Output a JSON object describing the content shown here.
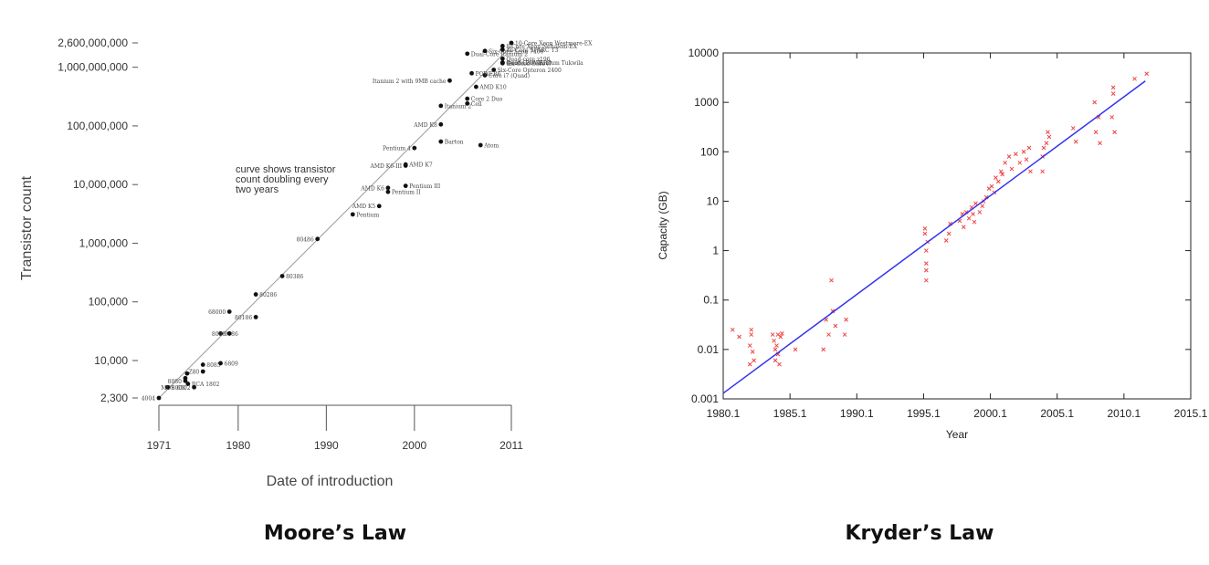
{
  "captions": {
    "left": "Moore’s Law",
    "right": "Kryder’s Law"
  },
  "chart_data": [
    {
      "type": "scatter",
      "title": "",
      "xlabel": "Date of introduction",
      "ylabel": "Transistor count",
      "yscale": "log",
      "xlim": [
        1971,
        2011
      ],
      "ylim": [
        2300,
        2600000000
      ],
      "x_ticks": [
        1971,
        1980,
        1990,
        2000,
        2011
      ],
      "y_ticks": [
        {
          "value": 2300,
          "label": "2,300"
        },
        {
          "value": 10000,
          "label": "10,000"
        },
        {
          "value": 100000,
          "label": "100,000"
        },
        {
          "value": 1000000,
          "label": "1,000,000"
        },
        {
          "value": 10000000,
          "label": "10,000,000"
        },
        {
          "value": 100000000,
          "label": "100,000,000"
        },
        {
          "value": 1000000000,
          "label": "1,000,000,000"
        },
        {
          "value": 2600000000,
          "label": "2,600,000,000"
        }
      ],
      "grid": false,
      "annotation": [
        "curve shows transistor",
        "count doubling every",
        "two years"
      ],
      "trend_line": {
        "x": [
          1971,
          2011
        ],
        "y": [
          2300,
          2300000000
        ]
      },
      "points": [
        {
          "x": 1971,
          "y": 2300,
          "label": "4004"
        },
        {
          "x": 1972,
          "y": 3500,
          "label": "8008"
        },
        {
          "x": 1974,
          "y": 4500,
          "label": "8080"
        },
        {
          "x": 1974,
          "y": 5000,
          "label": ""
        },
        {
          "x": 1974.2,
          "y": 6000,
          "label": ""
        },
        {
          "x": 1974.3,
          "y": 4000,
          "label": "RCA 1802"
        },
        {
          "x": 1975,
          "y": 3500,
          "label": "MOS 6502"
        },
        {
          "x": 1976,
          "y": 8500,
          "label": "8085"
        },
        {
          "x": 1976,
          "y": 6500,
          "label": "Z80"
        },
        {
          "x": 1978,
          "y": 29000,
          "label": "8086"
        },
        {
          "x": 1979,
          "y": 29000,
          "label": "8088"
        },
        {
          "x": 1978,
          "y": 9000,
          "label": "6809"
        },
        {
          "x": 1979,
          "y": 68000,
          "label": "68000"
        },
        {
          "x": 1982,
          "y": 134000,
          "label": "80286"
        },
        {
          "x": 1982,
          "y": 55000,
          "label": "80186"
        },
        {
          "x": 1985,
          "y": 275000,
          "label": "80386"
        },
        {
          "x": 1989,
          "y": 1180000,
          "label": "80486"
        },
        {
          "x": 1993,
          "y": 3100000,
          "label": "Pentium"
        },
        {
          "x": 1996,
          "y": 4300000,
          "label": "AMD K5"
        },
        {
          "x": 1997,
          "y": 7500000,
          "label": "Pentium II"
        },
        {
          "x": 1997,
          "y": 8800000,
          "label": "AMD K6"
        },
        {
          "x": 1999,
          "y": 9500000,
          "label": "Pentium III"
        },
        {
          "x": 1999,
          "y": 21000000,
          "label": "AMD K6-III"
        },
        {
          "x": 1999,
          "y": 22000000,
          "label": "AMD K7"
        },
        {
          "x": 2000,
          "y": 42000000,
          "label": "Pentium 4"
        },
        {
          "x": 2003,
          "y": 54000000,
          "label": "Barton"
        },
        {
          "x": 2003,
          "y": 105900000,
          "label": "AMD K8"
        },
        {
          "x": 2003,
          "y": 220000000,
          "label": "Itanium 2"
        },
        {
          "x": 2006,
          "y": 291000000,
          "label": "Core 2 Duo"
        },
        {
          "x": 2006,
          "y": 241000000,
          "label": "Cell"
        },
        {
          "x": 2007.5,
          "y": 47000000,
          "label": "Atom"
        },
        {
          "x": 2007,
          "y": 463000000,
          "label": "AMD K10"
        },
        {
          "x": 2008,
          "y": 731000000,
          "label": "Core i7 (Quad)"
        },
        {
          "x": 2006.5,
          "y": 789000000,
          "label": "POWER6"
        },
        {
          "x": 2004,
          "y": 592000000,
          "label": "Itanium 2 with 9MB cache"
        },
        {
          "x": 2006,
          "y": 1700000000,
          "label": "Dual-Core Itanium 2"
        },
        {
          "x": 2008,
          "y": 1900000000,
          "label": "Six-Core Xeon 7400"
        },
        {
          "x": 2009,
          "y": 904000000,
          "label": "Six-Core Opteron 2400"
        },
        {
          "x": 2010,
          "y": 1170000000,
          "label": "Six-Core Core i7"
        },
        {
          "x": 2010,
          "y": 2300000000,
          "label": "8-Core Xeon Nehalem-EX"
        },
        {
          "x": 2010,
          "y": 1200000000,
          "label": "Quad-Core Itanium Tukwila"
        },
        {
          "x": 2010,
          "y": 1400000000,
          "label": "Quad-core z196"
        },
        {
          "x": 2010,
          "y": 1200000000,
          "label": "8-core POWER7"
        },
        {
          "x": 2010,
          "y": 2000000000,
          "label": "16-Core SPARC T3"
        },
        {
          "x": 2011,
          "y": 2600000000,
          "label": "10-Core Xeon Westmere-EX"
        }
      ]
    },
    {
      "type": "scatter",
      "title": "",
      "xlabel": "Year",
      "ylabel": "Capacity (GB)",
      "yscale": "log",
      "xlim": [
        1980.1,
        2015.1
      ],
      "ylim": [
        0.001,
        10000
      ],
      "x_ticks": [
        "1980.1",
        "1985.1",
        "1990.1",
        "1995.1",
        "2000.1",
        "2005.1",
        "2010.1",
        "2015.1"
      ],
      "y_ticks": [
        "0.001",
        "0.01",
        "0.1",
        "1",
        "10",
        "100",
        "1000",
        "10000"
      ],
      "grid": false,
      "point_color": "#ee4444",
      "line_color": "#3333ee",
      "trend_line": {
        "x": [
          1980.1,
          2011.7
        ],
        "y": [
          0.0013,
          2700
        ]
      },
      "points": [
        [
          1980.8,
          0.025
        ],
        [
          1981.3,
          0.018
        ],
        [
          1982.1,
          0.005
        ],
        [
          1982.1,
          0.012
        ],
        [
          1982.2,
          0.02
        ],
        [
          1982.2,
          0.025
        ],
        [
          1982.4,
          0.006
        ],
        [
          1982.3,
          0.009
        ],
        [
          1983.8,
          0.02
        ],
        [
          1983.9,
          0.015
        ],
        [
          1984.0,
          0.01
        ],
        [
          1984.1,
          0.012
        ],
        [
          1984.2,
          0.02
        ],
        [
          1984.3,
          0.005
        ],
        [
          1984.4,
          0.018
        ],
        [
          1984.0,
          0.006
        ],
        [
          1984.2,
          0.008
        ],
        [
          1984.5,
          0.021
        ],
        [
          1985.5,
          0.01
        ],
        [
          1987.6,
          0.01
        ],
        [
          1987.8,
          0.04
        ],
        [
          1988.0,
          0.02
        ],
        [
          1988.2,
          0.25
        ],
        [
          1988.3,
          0.06
        ],
        [
          1988.5,
          0.03
        ],
        [
          1989.2,
          0.02
        ],
        [
          1989.3,
          0.04
        ],
        [
          1995.3,
          0.25
        ],
        [
          1995.3,
          0.4
        ],
        [
          1995.3,
          0.55
        ],
        [
          1995.3,
          1.0
        ],
        [
          1995.4,
          1.5
        ],
        [
          1995.2,
          2.8
        ],
        [
          1995.2,
          2.2
        ],
        [
          1996.8,
          1.6
        ],
        [
          1997.0,
          2.2
        ],
        [
          1997.1,
          3.5
        ],
        [
          1997.8,
          4.0
        ],
        [
          1998.0,
          5.5
        ],
        [
          1998.1,
          3.0
        ],
        [
          1998.3,
          6.0
        ],
        [
          1998.5,
          4.5
        ],
        [
          1998.7,
          7.5
        ],
        [
          1998.8,
          5.5
        ],
        [
          1998.9,
          3.8
        ],
        [
          1999.0,
          9.0
        ],
        [
          1999.3,
          6.0
        ],
        [
          1999.5,
          8.0
        ],
        [
          1999.6,
          10.0
        ],
        [
          1999.8,
          12.0
        ],
        [
          2000.0,
          18.0
        ],
        [
          2000.2,
          20.0
        ],
        [
          2000.4,
          15.0
        ],
        [
          2000.5,
          30.0
        ],
        [
          2000.7,
          25.0
        ],
        [
          2000.9,
          40.0
        ],
        [
          2001.0,
          35.0
        ],
        [
          2001.2,
          60.0
        ],
        [
          2001.5,
          80.0
        ],
        [
          2001.7,
          45.0
        ],
        [
          2002.0,
          90.0
        ],
        [
          2002.3,
          60.0
        ],
        [
          2002.6,
          100.0
        ],
        [
          2002.8,
          70.0
        ],
        [
          2003.0,
          120.0
        ],
        [
          2003.1,
          40.0
        ],
        [
          2004.0,
          80.0
        ],
        [
          2004.1,
          120.0
        ],
        [
          2004.3,
          150.0
        ],
        [
          2004.4,
          250.0
        ],
        [
          2004.5,
          200.0
        ],
        [
          2004.0,
          40.0
        ],
        [
          2006.3,
          300.0
        ],
        [
          2006.5,
          160.0
        ],
        [
          2007.9,
          1000.0
        ],
        [
          2008.0,
          250.0
        ],
        [
          2008.2,
          500.0
        ],
        [
          2008.3,
          150.0
        ],
        [
          2009.3,
          1500.0
        ],
        [
          2009.3,
          2000.0
        ],
        [
          2009.2,
          500.0
        ],
        [
          2009.4,
          250.0
        ],
        [
          2010.9,
          3000.0
        ],
        [
          2011.8,
          3800.0
        ]
      ]
    }
  ]
}
